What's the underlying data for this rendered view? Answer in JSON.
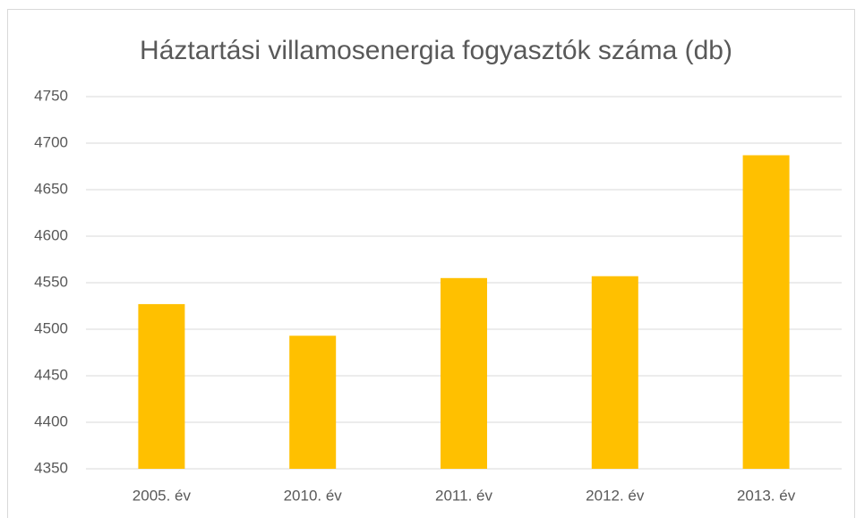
{
  "chart_data": {
    "type": "bar",
    "title": "Háztartási villamosenergia fogyasztók száma (db)",
    "categories": [
      "2005. év",
      "2010. év",
      "2011. év",
      "2012. év",
      "2013. év"
    ],
    "values": [
      4527,
      4493,
      4555,
      4557,
      4687
    ],
    "color": "#ffc000",
    "ylim": [
      4350,
      4750
    ],
    "yticks": [
      4350,
      4400,
      4450,
      4500,
      4550,
      4600,
      4650,
      4700,
      4750
    ],
    "grid": true
  }
}
